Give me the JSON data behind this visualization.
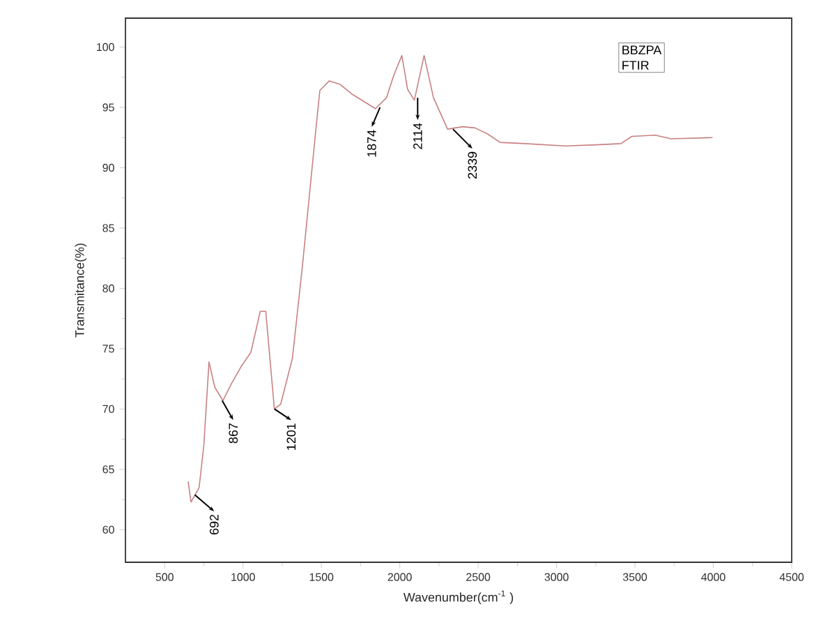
{
  "chart_data": {
    "type": "line",
    "xlabel": "Wavenumber(cm$^{-1}$ )",
    "ylabel": "Transmitance(%)",
    "xlim": [
      250,
      4500
    ],
    "ylim": [
      57.3,
      102.4
    ],
    "xticks": [
      500,
      1000,
      1500,
      2000,
      2500,
      3000,
      3500,
      4000,
      4500
    ],
    "yticks": [
      60,
      65,
      70,
      75,
      80,
      85,
      90,
      95,
      100
    ],
    "series": [
      {
        "color": "#c98080",
        "x": [
          650,
          668,
          695,
          720,
          750,
          783,
          820,
          872,
          930,
          987,
          1050,
          1110,
          1145,
          1200,
          1240,
          1315,
          1380,
          1465,
          1490,
          1550,
          1620,
          1695,
          1845,
          1915,
          1960,
          2013,
          2050,
          2093,
          2155,
          2215,
          2305,
          2400,
          2480,
          2560,
          2640,
          2800,
          3055,
          3250,
          3410,
          3480,
          3630,
          3730,
          3995
        ],
        "values": [
          64.0,
          62.3,
          62.9,
          63.5,
          67.0,
          73.9,
          71.8,
          70.7,
          72.2,
          73.5,
          74.7,
          78.1,
          78.1,
          70.0,
          70.4,
          74.2,
          82.0,
          93.2,
          96.4,
          97.2,
          96.9,
          96.1,
          94.9,
          95.8,
          97.6,
          99.3,
          96.5,
          95.6,
          99.3,
          95.8,
          93.2,
          93.4,
          93.3,
          92.8,
          92.1,
          92.0,
          91.8,
          91.9,
          92.0,
          92.6,
          92.7,
          92.4,
          92.5
        ]
      }
    ],
    "annotations": [
      {
        "text": "692",
        "x": 692,
        "y": 62.9
      },
      {
        "text": "867",
        "x": 867,
        "y": 70.7
      },
      {
        "text": "1201",
        "x": 1201,
        "y": 70.0
      },
      {
        "text": "1874",
        "x": 1874,
        "y": 95.0
      },
      {
        "text": "2114",
        "x": 2114,
        "y": 95.8
      },
      {
        "text": "2339",
        "x": 2339,
        "y": 93.2
      },
      "BBZPA",
      "FTIR"
    ]
  }
}
